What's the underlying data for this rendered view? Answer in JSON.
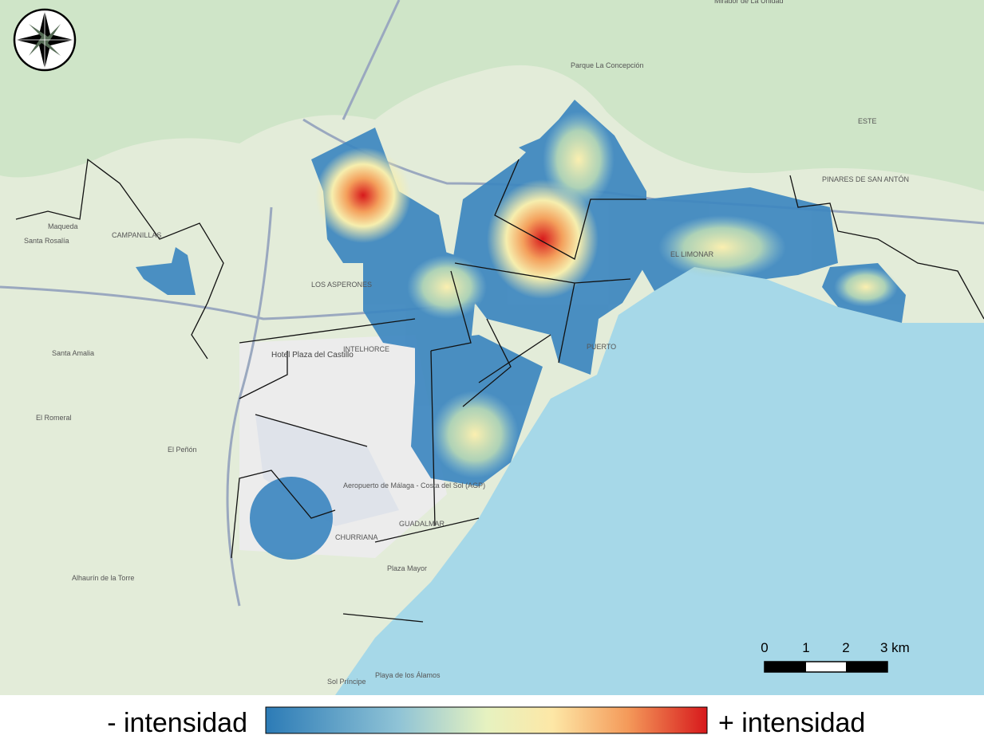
{
  "legend": {
    "low": "- intensidad",
    "high": "+ intensidad"
  },
  "scale": {
    "labels": [
      "0",
      "1",
      "2",
      "3 km"
    ]
  },
  "places": [
    "CAMPANILLAS",
    "Maqueda",
    "Santa Rosalía",
    "Santa Amalia",
    "El Romeral",
    "El Peñón",
    "Alhaurín de la Torre",
    "CHURRIANA",
    "INTELHORCE",
    "Hotel Plaza del Castillo",
    "Aeropuerto de Málaga - Costa del Sol (AGP)",
    "LOS ASPERONES",
    "GUADALMAR",
    "Plaza Mayor",
    "Playa de los Álamos",
    "Sol Príncipe",
    "Parque La Concepción",
    "EL LIMONAR",
    "PUERTO",
    "ESTE",
    "PINARES DE SAN ANTÓN",
    "Mirador de La Unidad"
  ]
}
